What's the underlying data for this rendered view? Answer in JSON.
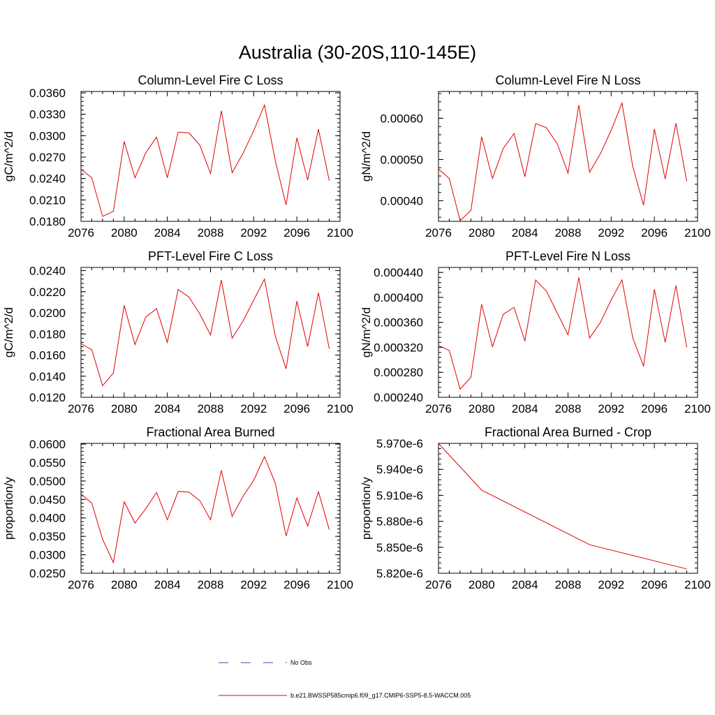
{
  "figure": {
    "title": "Australia (30-20S,110-145E)"
  },
  "legend": {
    "entries": [
      {
        "label": "No Obs",
        "color": "#4a4ab0",
        "style": "dashed"
      },
      {
        "label": "b.e21.BWSSP585cmip6.f09_g17.CMIP6-SSP5-8.5-WACCM.005",
        "color": "#e00000",
        "style": "solid"
      }
    ]
  },
  "chart_data": [
    {
      "type": "line",
      "title": "Column-Level Fire C Loss",
      "ylabel": "gC/m^2/d",
      "xlim": [
        2076,
        2100
      ],
      "ylim": [
        0.018,
        0.0362
      ],
      "xticks": [
        2076,
        2080,
        2084,
        2088,
        2092,
        2096,
        2100
      ],
      "yticks": [
        0.018,
        0.021,
        0.024,
        0.027,
        0.03,
        0.033,
        0.036
      ],
      "yticklabels": [
        "0.0180",
        "0.0210",
        "0.0240",
        "0.0270",
        "0.0300",
        "0.0330",
        "0.0360"
      ],
      "series": [
        {
          "name": "b.e21.BWSSP585cmip6.f09_g17.CMIP6-SSP5-8.5-WACCM.005",
          "color": "#e00000",
          "x": [
            2076,
            2077,
            2078,
            2079,
            2080,
            2081,
            2082,
            2083,
            2084,
            2085,
            2086,
            2087,
            2088,
            2089,
            2090,
            2091,
            2092,
            2093,
            2094,
            2095,
            2096,
            2097,
            2098,
            2099
          ],
          "values": [
            0.0253,
            0.0241,
            0.0187,
            0.0194,
            0.0292,
            0.0241,
            0.0276,
            0.0298,
            0.0241,
            0.0305,
            0.0304,
            0.0287,
            0.0247,
            0.0335,
            0.0248,
            0.0275,
            0.0307,
            0.0343,
            0.0265,
            0.0203,
            0.0297,
            0.0238,
            0.0309,
            0.0237
          ]
        }
      ]
    },
    {
      "type": "line",
      "title": "Column-Level Fire N Loss",
      "ylabel": "gN/m^2/d",
      "xlim": [
        2076,
        2100
      ],
      "ylim": [
        0.00035,
        0.000665
      ],
      "xticks": [
        2076,
        2080,
        2084,
        2088,
        2092,
        2096,
        2100
      ],
      "yticks": [
        0.0004,
        0.0005,
        0.0006
      ],
      "yticklabels": [
        "0.00040",
        "0.00050",
        "0.00060"
      ],
      "series": [
        {
          "name": "b.e21.BWSSP585cmip6.f09_g17.CMIP6-SSP5-8.5-WACCM.005",
          "color": "#e00000",
          "x": [
            2076,
            2077,
            2078,
            2079,
            2080,
            2081,
            2082,
            2083,
            2084,
            2085,
            2086,
            2087,
            2088,
            2089,
            2090,
            2091,
            2092,
            2093,
            2094,
            2095,
            2096,
            2097,
            2098,
            2099
          ],
          "values": [
            0.000477,
            0.000454,
            0.000352,
            0.000376,
            0.000555,
            0.000454,
            0.000527,
            0.000563,
            0.000458,
            0.000587,
            0.000577,
            0.000538,
            0.000467,
            0.000632,
            0.000469,
            0.000514,
            0.000571,
            0.000637,
            0.000483,
            0.000389,
            0.000574,
            0.000453,
            0.000588,
            0.000447
          ]
        }
      ]
    },
    {
      "type": "line",
      "title": "PFT-Level Fire C Loss",
      "ylabel": "gC/m^2/d",
      "xlim": [
        2076,
        2100
      ],
      "ylim": [
        0.012,
        0.0243
      ],
      "xticks": [
        2076,
        2080,
        2084,
        2088,
        2092,
        2096,
        2100
      ],
      "yticks": [
        0.012,
        0.014,
        0.016,
        0.018,
        0.02,
        0.022,
        0.024
      ],
      "yticklabels": [
        "0.0120",
        "0.0140",
        "0.0160",
        "0.0180",
        "0.0200",
        "0.0220",
        "0.0240"
      ],
      "series": [
        {
          "name": "b.e21.BWSSP585cmip6.f09_g17.CMIP6-SSP5-8.5-WACCM.005",
          "color": "#e00000",
          "x": [
            2076,
            2077,
            2078,
            2079,
            2080,
            2081,
            2082,
            2083,
            2084,
            2085,
            2086,
            2087,
            2088,
            2089,
            2090,
            2091,
            2092,
            2093,
            2094,
            2095,
            2096,
            2097,
            2098,
            2099
          ],
          "values": [
            0.0171,
            0.0165,
            0.0131,
            0.0143,
            0.0207,
            0.017,
            0.0196,
            0.0204,
            0.0172,
            0.0222,
            0.0215,
            0.0199,
            0.0179,
            0.0231,
            0.0176,
            0.0192,
            0.0212,
            0.0232,
            0.0178,
            0.0147,
            0.0211,
            0.0168,
            0.0219,
            0.0166
          ]
        }
      ]
    },
    {
      "type": "line",
      "title": "PFT-Level Fire N Loss",
      "ylabel": "gN/m^2/d",
      "xlim": [
        2076,
        2100
      ],
      "ylim": [
        0.00024,
        0.000448
      ],
      "xticks": [
        2076,
        2080,
        2084,
        2088,
        2092,
        2096,
        2100
      ],
      "yticks": [
        0.00024,
        0.00028,
        0.00032,
        0.00036,
        0.0004,
        0.00044
      ],
      "yticklabels": [
        "0.000240",
        "0.000280",
        "0.000320",
        "0.000360",
        "0.000400",
        "0.000440"
      ],
      "series": [
        {
          "name": "b.e21.BWSSP585cmip6.f09_g17.CMIP6-SSP5-8.5-WACCM.005",
          "color": "#e00000",
          "x": [
            2076,
            2077,
            2078,
            2079,
            2080,
            2081,
            2082,
            2083,
            2084,
            2085,
            2086,
            2087,
            2088,
            2089,
            2090,
            2091,
            2092,
            2093,
            2094,
            2095,
            2096,
            2097,
            2098,
            2099
          ],
          "values": [
            0.000323,
            0.000315,
            0.000253,
            0.000272,
            0.000389,
            0.000321,
            0.000373,
            0.000384,
            0.00033,
            0.000428,
            0.00041,
            0.000375,
            0.00034,
            0.000432,
            0.000335,
            0.00036,
            0.000396,
            0.000428,
            0.000335,
            0.00029,
            0.000413,
            0.000328,
            0.000419,
            0.00032
          ]
        }
      ]
    },
    {
      "type": "line",
      "title": "Fractional Area Burned",
      "ylabel": "proportion/y",
      "xlim": [
        2076,
        2100
      ],
      "ylim": [
        0.025,
        0.0602
      ],
      "xticks": [
        2076,
        2080,
        2084,
        2088,
        2092,
        2096,
        2100
      ],
      "yticks": [
        0.025,
        0.03,
        0.035,
        0.04,
        0.045,
        0.05,
        0.055,
        0.06
      ],
      "yticklabels": [
        "0.0250",
        "0.0300",
        "0.0350",
        "0.0400",
        "0.0450",
        "0.0500",
        "0.0550",
        "0.0600"
      ],
      "series": [
        {
          "name": "b.e21.BWSSP585cmip6.f09_g17.CMIP6-SSP5-8.5-WACCM.005",
          "color": "#e00000",
          "x": [
            2076,
            2077,
            2078,
            2079,
            2080,
            2081,
            2082,
            2083,
            2084,
            2085,
            2086,
            2087,
            2088,
            2089,
            2090,
            2091,
            2092,
            2093,
            2094,
            2095,
            2096,
            2097,
            2098,
            2099
          ],
          "values": [
            0.0465,
            0.044,
            0.0342,
            0.0279,
            0.0444,
            0.0386,
            0.0425,
            0.0469,
            0.0395,
            0.0472,
            0.047,
            0.0447,
            0.0395,
            0.0529,
            0.0404,
            0.0458,
            0.0502,
            0.0566,
            0.0494,
            0.0351,
            0.0454,
            0.0378,
            0.0471,
            0.0368
          ]
        }
      ]
    },
    {
      "type": "line",
      "title": "Fractional Area Burned - Crop",
      "ylabel": "proportion/y",
      "xlim": [
        2076,
        2100
      ],
      "ylim": [
        5.82e-06,
        5.97e-06
      ],
      "xticks": [
        2076,
        2080,
        2084,
        2088,
        2092,
        2096,
        2100
      ],
      "yticks": [
        5.82e-06,
        5.85e-06,
        5.88e-06,
        5.91e-06,
        5.94e-06,
        5.97e-06
      ],
      "yticklabels": [
        "5.820e-6",
        "5.850e-6",
        "5.880e-6",
        "5.910e-6",
        "5.940e-6",
        "5.970e-6"
      ],
      "series": [
        {
          "name": "b.e21.BWSSP585cmip6.f09_g17.CMIP6-SSP5-8.5-WACCM.005",
          "color": "#e00000",
          "x": [
            2076,
            2080,
            2090,
            2099
          ],
          "values": [
            5.97e-06,
            5.916e-06,
            5.853e-06,
            5.825e-06
          ]
        }
      ]
    }
  ]
}
